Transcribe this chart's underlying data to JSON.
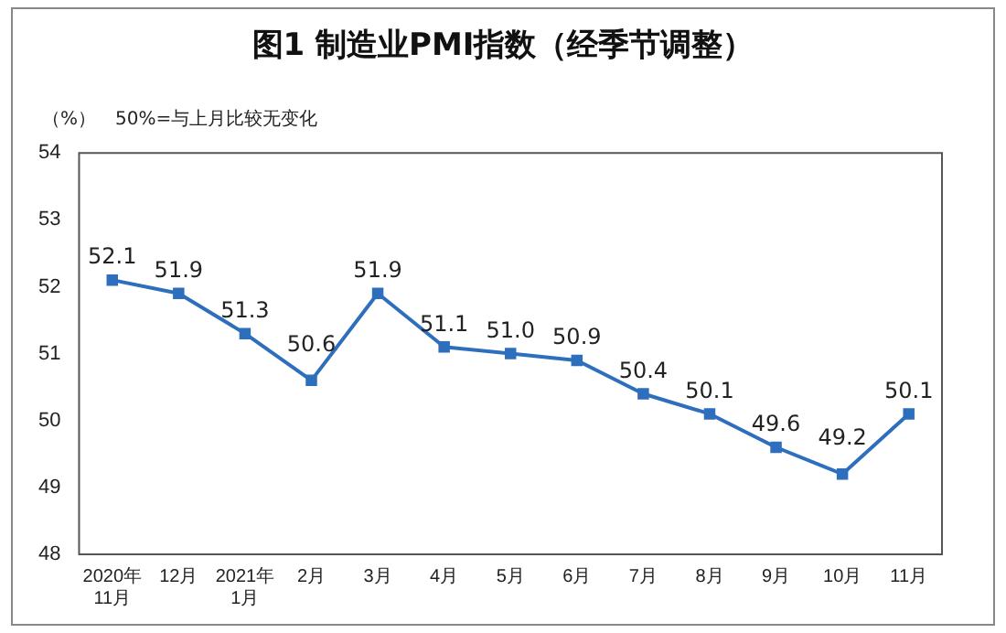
{
  "chart_data": {
    "type": "line",
    "title": "图1 制造业PMI指数（经季节调整）",
    "ylabel": "（%）",
    "annotations": [
      "50%=与上月比较无变化"
    ],
    "categories": [
      "2020年\n11月",
      "12月",
      "2021年\n1月",
      "2月",
      "3月",
      "4月",
      "5月",
      "6月",
      "7月",
      "8月",
      "9月",
      "10月",
      "11月"
    ],
    "series": [
      {
        "color": "#2e6fbd",
        "values": [
          52.1,
          51.9,
          51.3,
          50.6,
          51.9,
          51.1,
          51.0,
          50.9,
          50.4,
          50.1,
          49.6,
          49.2,
          50.1
        ],
        "value_labels": [
          "52.1",
          "51.9",
          "51.3",
          "50.6",
          "51.9",
          "51.1",
          "51.0",
          "50.9",
          "50.4",
          "50.1",
          "49.6",
          "49.2",
          "50.1"
        ]
      }
    ],
    "ylim": [
      48,
      54
    ],
    "yticks": [
      48,
      49,
      50,
      51,
      52,
      53,
      54
    ],
    "grid": false,
    "legend": false,
    "marker": "square",
    "line_style": "solid"
  }
}
